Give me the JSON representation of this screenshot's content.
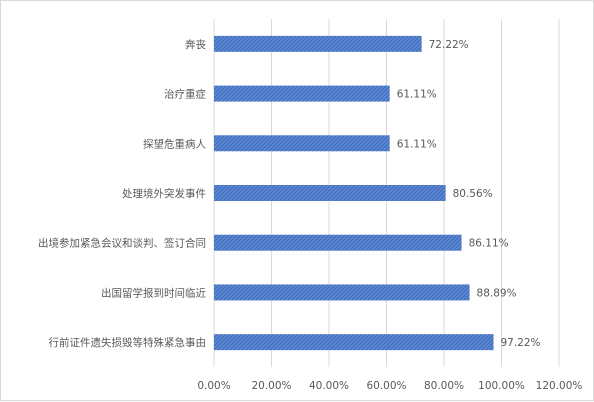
{
  "chart_data": {
    "type": "bar",
    "orientation": "horizontal",
    "categories": [
      "奔丧",
      "治疗重症",
      "探望危重病人",
      "处理境外突发事件",
      "出境参加紧急会议和谈判、签订合同",
      "出国留学报到时间临近",
      "行前证件遗失损毁等特殊紧急事由"
    ],
    "values": [
      72.22,
      61.11,
      61.11,
      80.56,
      86.11,
      88.89,
      97.22
    ],
    "value_labels": [
      "72.22%",
      "61.11%",
      "61.11%",
      "80.56%",
      "86.11%",
      "88.89%",
      "97.22%"
    ],
    "xlim": [
      0,
      120
    ],
    "x_ticks": [
      0,
      20,
      40,
      60,
      80,
      100,
      120
    ],
    "x_tick_labels": [
      "0.00%",
      "20.00%",
      "40.00%",
      "60.00%",
      "80.00%",
      "100.00%",
      "120.00%"
    ],
    "grid": true,
    "bar_color": "#4472c4",
    "bar_pattern": "diagonal-hatch",
    "gridline_color": "#d9d9d9"
  }
}
